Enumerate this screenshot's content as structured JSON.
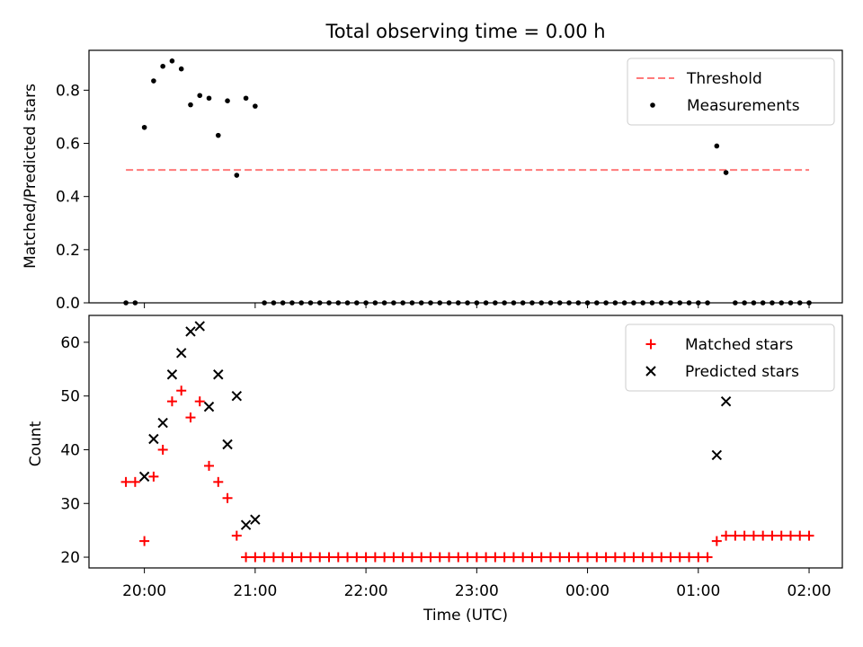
{
  "title": "Total observing time = 0.00 h",
  "chart_data": [
    {
      "type": "scatter",
      "panel": "top",
      "ylabel": "Matched/Predicted stars",
      "xlabel": "",
      "ylim": [
        0,
        0.95
      ],
      "yticks": [
        0.0,
        0.2,
        0.4,
        0.6,
        0.8
      ],
      "ytick_labels": [
        "0.0",
        "0.2",
        "0.4",
        "0.6",
        "0.8"
      ],
      "legend_position": "upper right",
      "threshold": {
        "name": "Threshold",
        "value": 0.5,
        "x_start": "19:50",
        "x_end": "02:00",
        "color": "#ff7a7a",
        "style": "dashed"
      },
      "series": [
        {
          "name": "Measurements",
          "color": "#000000",
          "marker": "dot",
          "points": [
            [
              "19:50",
              0.0
            ],
            [
              "19:55",
              0.0
            ],
            [
              "20:00",
              0.66
            ],
            [
              "20:05",
              0.835
            ],
            [
              "20:10",
              0.89
            ],
            [
              "20:15",
              0.91
            ],
            [
              "20:20",
              0.88
            ],
            [
              "20:25",
              0.745
            ],
            [
              "20:30",
              0.78
            ],
            [
              "20:35",
              0.77
            ],
            [
              "20:40",
              0.63
            ],
            [
              "20:45",
              0.76
            ],
            [
              "20:50",
              0.48
            ],
            [
              "20:55",
              0.77
            ],
            [
              "21:00",
              0.74
            ],
            [
              "21:05",
              0.0
            ],
            [
              "21:10",
              0.0
            ],
            [
              "21:15",
              0.0
            ],
            [
              "21:20",
              0.0
            ],
            [
              "21:25",
              0.0
            ],
            [
              "21:30",
              0.0
            ],
            [
              "21:35",
              0.0
            ],
            [
              "21:40",
              0.0
            ],
            [
              "21:45",
              0.0
            ],
            [
              "21:50",
              0.0
            ],
            [
              "21:55",
              0.0
            ],
            [
              "22:00",
              0.0
            ],
            [
              "22:05",
              0.0
            ],
            [
              "22:10",
              0.0
            ],
            [
              "22:15",
              0.0
            ],
            [
              "22:20",
              0.0
            ],
            [
              "22:25",
              0.0
            ],
            [
              "22:30",
              0.0
            ],
            [
              "22:35",
              0.0
            ],
            [
              "22:40",
              0.0
            ],
            [
              "22:45",
              0.0
            ],
            [
              "22:50",
              0.0
            ],
            [
              "22:55",
              0.0
            ],
            [
              "23:00",
              0.0
            ],
            [
              "23:05",
              0.0
            ],
            [
              "23:10",
              0.0
            ],
            [
              "23:15",
              0.0
            ],
            [
              "23:20",
              0.0
            ],
            [
              "23:25",
              0.0
            ],
            [
              "23:30",
              0.0
            ],
            [
              "23:35",
              0.0
            ],
            [
              "23:40",
              0.0
            ],
            [
              "23:45",
              0.0
            ],
            [
              "23:50",
              0.0
            ],
            [
              "23:55",
              0.0
            ],
            [
              "00:00",
              0.0
            ],
            [
              "00:05",
              0.0
            ],
            [
              "00:10",
              0.0
            ],
            [
              "00:15",
              0.0
            ],
            [
              "00:20",
              0.0
            ],
            [
              "00:25",
              0.0
            ],
            [
              "00:30",
              0.0
            ],
            [
              "00:35",
              0.0
            ],
            [
              "00:40",
              0.0
            ],
            [
              "00:45",
              0.0
            ],
            [
              "00:50",
              0.0
            ],
            [
              "00:55",
              0.0
            ],
            [
              "01:00",
              0.0
            ],
            [
              "01:05",
              0.0
            ],
            [
              "01:10",
              0.59
            ],
            [
              "01:15",
              0.49
            ],
            [
              "01:20",
              0.0
            ],
            [
              "01:25",
              0.0
            ],
            [
              "01:30",
              0.0
            ],
            [
              "01:35",
              0.0
            ],
            [
              "01:40",
              0.0
            ],
            [
              "01:45",
              0.0
            ],
            [
              "01:50",
              0.0
            ],
            [
              "01:55",
              0.0
            ],
            [
              "02:00",
              0.0
            ]
          ]
        }
      ]
    },
    {
      "type": "scatter",
      "panel": "bottom",
      "ylabel": "Count",
      "xlabel": "Time (UTC)",
      "ylim": [
        18,
        65
      ],
      "yticks": [
        20,
        30,
        40,
        50,
        60
      ],
      "ytick_labels": [
        "20",
        "30",
        "40",
        "50",
        "60"
      ],
      "xticks": [
        "20:00",
        "21:00",
        "22:00",
        "23:00",
        "00:00",
        "01:00",
        "02:00"
      ],
      "legend_position": "upper right",
      "series": [
        {
          "name": "Matched stars",
          "color": "#ff0000",
          "marker": "plus",
          "points": [
            [
              "19:50",
              34
            ],
            [
              "19:55",
              34
            ],
            [
              "20:00",
              23
            ],
            [
              "20:05",
              35
            ],
            [
              "20:10",
              40
            ],
            [
              "20:15",
              49
            ],
            [
              "20:20",
              51
            ],
            [
              "20:25",
              46
            ],
            [
              "20:30",
              49
            ],
            [
              "20:35",
              37
            ],
            [
              "20:40",
              34
            ],
            [
              "20:45",
              31
            ],
            [
              "20:50",
              24
            ],
            [
              "20:55",
              20
            ],
            [
              "21:00",
              20
            ],
            [
              "21:05",
              20
            ],
            [
              "21:10",
              20
            ],
            [
              "21:15",
              20
            ],
            [
              "21:20",
              20
            ],
            [
              "21:25",
              20
            ],
            [
              "21:30",
              20
            ],
            [
              "21:35",
              20
            ],
            [
              "21:40",
              20
            ],
            [
              "21:45",
              20
            ],
            [
              "21:50",
              20
            ],
            [
              "21:55",
              20
            ],
            [
              "22:00",
              20
            ],
            [
              "22:05",
              20
            ],
            [
              "22:10",
              20
            ],
            [
              "22:15",
              20
            ],
            [
              "22:20",
              20
            ],
            [
              "22:25",
              20
            ],
            [
              "22:30",
              20
            ],
            [
              "22:35",
              20
            ],
            [
              "22:40",
              20
            ],
            [
              "22:45",
              20
            ],
            [
              "22:50",
              20
            ],
            [
              "22:55",
              20
            ],
            [
              "23:00",
              20
            ],
            [
              "23:05",
              20
            ],
            [
              "23:10",
              20
            ],
            [
              "23:15",
              20
            ],
            [
              "23:20",
              20
            ],
            [
              "23:25",
              20
            ],
            [
              "23:30",
              20
            ],
            [
              "23:35",
              20
            ],
            [
              "23:40",
              20
            ],
            [
              "23:45",
              20
            ],
            [
              "23:50",
              20
            ],
            [
              "23:55",
              20
            ],
            [
              "00:00",
              20
            ],
            [
              "00:05",
              20
            ],
            [
              "00:10",
              20
            ],
            [
              "00:15",
              20
            ],
            [
              "00:20",
              20
            ],
            [
              "00:25",
              20
            ],
            [
              "00:30",
              20
            ],
            [
              "00:35",
              20
            ],
            [
              "00:40",
              20
            ],
            [
              "00:45",
              20
            ],
            [
              "00:50",
              20
            ],
            [
              "00:55",
              20
            ],
            [
              "01:00",
              20
            ],
            [
              "01:05",
              20
            ],
            [
              "01:10",
              23
            ],
            [
              "01:15",
              24
            ],
            [
              "01:20",
              24
            ],
            [
              "01:25",
              24
            ],
            [
              "01:30",
              24
            ],
            [
              "01:35",
              24
            ],
            [
              "01:40",
              24
            ],
            [
              "01:45",
              24
            ],
            [
              "01:50",
              24
            ],
            [
              "01:55",
              24
            ],
            [
              "02:00",
              24
            ]
          ]
        },
        {
          "name": "Predicted stars",
          "color": "#000000",
          "marker": "x",
          "points": [
            [
              "20:00",
              35
            ],
            [
              "20:05",
              42
            ],
            [
              "20:10",
              45
            ],
            [
              "20:15",
              54
            ],
            [
              "20:20",
              58
            ],
            [
              "20:25",
              62
            ],
            [
              "20:30",
              63
            ],
            [
              "20:35",
              48
            ],
            [
              "20:40",
              54
            ],
            [
              "20:45",
              41
            ],
            [
              "20:50",
              50
            ],
            [
              "20:55",
              26
            ],
            [
              "21:00",
              27
            ],
            [
              "01:10",
              39
            ],
            [
              "01:15",
              49
            ]
          ]
        }
      ]
    }
  ]
}
